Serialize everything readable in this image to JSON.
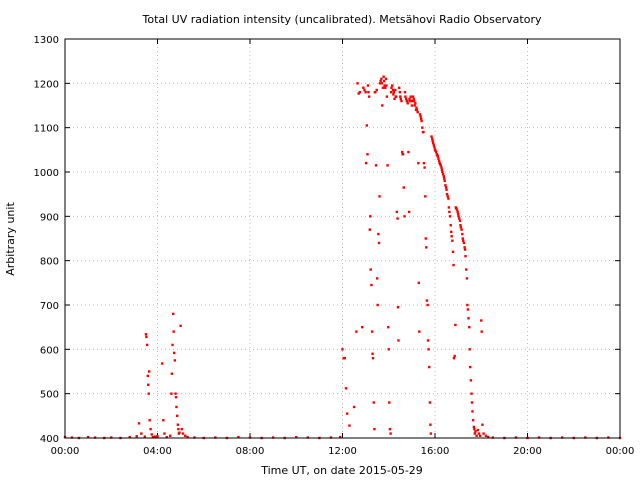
{
  "chart_data": {
    "type": "scatter",
    "title": "Total UV radiation intensity (uncalibrated). Metsähovi Radio Observatory",
    "xlabel": "Time UT, on date 2015-05-29",
    "ylabel": "Arbitrary unit",
    "xlim": [
      0,
      24
    ],
    "ylim": [
      400,
      1300
    ],
    "x_ticks": [
      {
        "value": 0,
        "label": "00:00"
      },
      {
        "value": 4,
        "label": "04:00"
      },
      {
        "value": 8,
        "label": "08:00"
      },
      {
        "value": 12,
        "label": "12:00"
      },
      {
        "value": 16,
        "label": "16:00"
      },
      {
        "value": 20,
        "label": "20:00"
      },
      {
        "value": 24,
        "label": "00:00"
      }
    ],
    "y_ticks": [
      {
        "value": 400,
        "label": "400"
      },
      {
        "value": 500,
        "label": "500"
      },
      {
        "value": 600,
        "label": "600"
      },
      {
        "value": 700,
        "label": "700"
      },
      {
        "value": 800,
        "label": "800"
      },
      {
        "value": 900,
        "label": "900"
      },
      {
        "value": 1000,
        "label": "1000"
      },
      {
        "value": 1100,
        "label": "1100"
      },
      {
        "value": 1200,
        "label": "1200"
      },
      {
        "value": 1300,
        "label": "1300"
      }
    ],
    "grid": true,
    "marker_color": "#ff0000",
    "series": [
      {
        "points": [
          [
            0.0,
            402
          ],
          [
            0.3,
            401
          ],
          [
            0.6,
            400
          ],
          [
            1.0,
            402
          ],
          [
            1.3,
            401
          ],
          [
            1.7,
            400
          ],
          [
            2.0,
            401
          ],
          [
            2.4,
            400
          ],
          [
            2.8,
            402
          ],
          [
            3.1,
            404
          ],
          [
            3.2,
            433
          ],
          [
            3.3,
            410
          ],
          [
            3.45,
            403
          ],
          [
            3.5,
            634
          ],
          [
            3.52,
            628
          ],
          [
            3.55,
            610
          ],
          [
            3.58,
            540
          ],
          [
            3.6,
            520
          ],
          [
            3.62,
            500
          ],
          [
            3.64,
            550
          ],
          [
            3.66,
            440
          ],
          [
            3.7,
            420
          ],
          [
            3.75,
            408
          ],
          [
            3.8,
            402
          ],
          [
            3.9,
            403
          ],
          [
            4.0,
            404
          ],
          [
            4.2,
            568
          ],
          [
            4.25,
            440
          ],
          [
            4.3,
            410
          ],
          [
            4.4,
            402
          ],
          [
            4.55,
            405
          ],
          [
            4.6,
            500
          ],
          [
            4.62,
            545
          ],
          [
            4.65,
            610
          ],
          [
            4.68,
            680
          ],
          [
            4.7,
            640
          ],
          [
            4.72,
            592
          ],
          [
            4.75,
            575
          ],
          [
            4.78,
            500
          ],
          [
            4.8,
            492
          ],
          [
            4.82,
            470
          ],
          [
            4.85,
            450
          ],
          [
            4.88,
            430
          ],
          [
            4.9,
            420
          ],
          [
            4.92,
            410
          ],
          [
            4.95,
            412
          ],
          [
            5.0,
            653
          ],
          [
            5.05,
            420
          ],
          [
            5.1,
            410
          ],
          [
            5.2,
            405
          ],
          [
            5.3,
            402
          ],
          [
            5.6,
            401
          ],
          [
            6.0,
            400
          ],
          [
            6.5,
            401
          ],
          [
            7.0,
            400
          ],
          [
            7.5,
            402
          ],
          [
            8.0,
            401
          ],
          [
            8.5,
            400
          ],
          [
            9.0,
            401
          ],
          [
            9.5,
            400
          ],
          [
            10.0,
            402
          ],
          [
            10.5,
            401
          ],
          [
            11.0,
            400
          ],
          [
            11.5,
            401
          ],
          [
            11.9,
            402
          ],
          [
            12.0,
            600
          ],
          [
            12.05,
            580
          ],
          [
            12.1,
            580
          ],
          [
            12.15,
            512
          ],
          [
            12.2,
            455
          ],
          [
            12.3,
            428
          ],
          [
            12.5,
            470
          ],
          [
            12.6,
            640
          ],
          [
            12.65,
            1200
          ],
          [
            12.7,
            1177
          ],
          [
            12.75,
            1180
          ],
          [
            12.85,
            650
          ],
          [
            12.9,
            1190
          ],
          [
            12.95,
            1185
          ],
          [
            13.0,
            1180
          ],
          [
            13.02,
            1020
          ],
          [
            13.05,
            1105
          ],
          [
            13.08,
            1040
          ],
          [
            13.1,
            1195
          ],
          [
            13.12,
            1180
          ],
          [
            13.15,
            1170
          ],
          [
            13.18,
            870
          ],
          [
            13.2,
            900
          ],
          [
            13.22,
            780
          ],
          [
            13.25,
            745
          ],
          [
            13.28,
            640
          ],
          [
            13.3,
            590
          ],
          [
            13.32,
            580
          ],
          [
            13.35,
            480
          ],
          [
            13.38,
            420
          ],
          [
            13.4,
            1180
          ],
          [
            13.42,
            1180
          ],
          [
            13.45,
            1015
          ],
          [
            13.48,
            1185
          ],
          [
            13.5,
            760
          ],
          [
            13.52,
            700
          ],
          [
            13.55,
            860
          ],
          [
            13.58,
            840
          ],
          [
            13.6,
            945
          ],
          [
            13.62,
            1200
          ],
          [
            13.65,
            1205
          ],
          [
            13.68,
            1210
          ],
          [
            13.7,
            1200
          ],
          [
            13.72,
            1150
          ],
          [
            13.75,
            1190
          ],
          [
            13.78,
            1215
          ],
          [
            13.8,
            1205
          ],
          [
            13.82,
            1195
          ],
          [
            13.85,
            1190
          ],
          [
            13.88,
            1210
          ],
          [
            13.9,
            1195
          ],
          [
            13.92,
            1170
          ],
          [
            13.95,
            1015
          ],
          [
            13.98,
            650
          ],
          [
            14.0,
            600
          ],
          [
            14.02,
            480
          ],
          [
            14.05,
            420
          ],
          [
            14.08,
            410
          ],
          [
            14.1,
            1180
          ],
          [
            14.12,
            1190
          ],
          [
            14.15,
            1195
          ],
          [
            14.18,
            1185
          ],
          [
            14.2,
            1175
          ],
          [
            14.22,
            1180
          ],
          [
            14.25,
            1165
          ],
          [
            14.28,
            1185
          ],
          [
            14.3,
            1170
          ],
          [
            14.32,
            1170
          ],
          [
            14.35,
            910
          ],
          [
            14.38,
            895
          ],
          [
            14.4,
            695
          ],
          [
            14.42,
            620
          ],
          [
            14.45,
            1190
          ],
          [
            14.48,
            1180
          ],
          [
            14.5,
            1170
          ],
          [
            14.52,
            1165
          ],
          [
            14.55,
            1160
          ],
          [
            14.58,
            1045
          ],
          [
            14.6,
            1040
          ],
          [
            14.62,
            1040
          ],
          [
            14.65,
            965
          ],
          [
            14.68,
            900
          ],
          [
            14.7,
            1180
          ],
          [
            14.72,
            1170
          ],
          [
            14.75,
            1165
          ],
          [
            14.78,
            1160
          ],
          [
            14.8,
            1160
          ],
          [
            14.82,
            1155
          ],
          [
            14.85,
            1045
          ],
          [
            14.88,
            910
          ],
          [
            14.9,
            1165
          ],
          [
            14.92,
            1160
          ],
          [
            14.95,
            1170
          ],
          [
            14.98,
            1160
          ],
          [
            15.0,
            1150
          ],
          [
            15.02,
            1160
          ],
          [
            15.05,
            1170
          ],
          [
            15.08,
            1165
          ],
          [
            15.1,
            1160
          ],
          [
            15.12,
            1150
          ],
          [
            15.15,
            1155
          ],
          [
            15.18,
            1140
          ],
          [
            15.2,
            1145
          ],
          [
            15.22,
            1140
          ],
          [
            15.25,
            1135
          ],
          [
            15.28,
            1020
          ],
          [
            15.3,
            750
          ],
          [
            15.32,
            640
          ],
          [
            15.35,
            1130
          ],
          [
            15.38,
            1125
          ],
          [
            15.4,
            1120
          ],
          [
            15.42,
            1115
          ],
          [
            15.45,
            1100
          ],
          [
            15.48,
            1090
          ],
          [
            15.5,
            1090
          ],
          [
            15.52,
            1020
          ],
          [
            15.55,
            1010
          ],
          [
            15.58,
            945
          ],
          [
            15.6,
            850
          ],
          [
            15.62,
            830
          ],
          [
            15.65,
            710
          ],
          [
            15.68,
            700
          ],
          [
            15.7,
            620
          ],
          [
            15.72,
            600
          ],
          [
            15.75,
            560
          ],
          [
            15.78,
            480
          ],
          [
            15.8,
            430
          ],
          [
            15.82,
            410
          ],
          [
            15.85,
            1080
          ],
          [
            15.88,
            1075
          ],
          [
            15.9,
            1070
          ],
          [
            15.92,
            1065
          ],
          [
            15.95,
            1060
          ],
          [
            15.98,
            1055
          ],
          [
            16.0,
            1050
          ],
          [
            16.02,
            1048
          ],
          [
            16.05,
            1045
          ],
          [
            16.08,
            1040
          ],
          [
            16.1,
            1038
          ],
          [
            16.12,
            1035
          ],
          [
            16.15,
            1030
          ],
          [
            16.18,
            1025
          ],
          [
            16.2,
            1020
          ],
          [
            16.22,
            1018
          ],
          [
            16.25,
            1015
          ],
          [
            16.28,
            1010
          ],
          [
            16.3,
            1005
          ],
          [
            16.32,
            1000
          ],
          [
            16.35,
            995
          ],
          [
            16.38,
            990
          ],
          [
            16.4,
            985
          ],
          [
            16.42,
            980
          ],
          [
            16.45,
            970
          ],
          [
            16.48,
            965
          ],
          [
            16.5,
            960
          ],
          [
            16.52,
            950
          ],
          [
            16.55,
            945
          ],
          [
            16.58,
            940
          ],
          [
            16.6,
            920
          ],
          [
            16.62,
            910
          ],
          [
            16.65,
            900
          ],
          [
            16.68,
            880
          ],
          [
            16.7,
            865
          ],
          [
            16.72,
            855
          ],
          [
            16.75,
            845
          ],
          [
            16.78,
            820
          ],
          [
            16.8,
            790
          ],
          [
            16.82,
            580
          ],
          [
            16.85,
            585
          ],
          [
            16.88,
            655
          ],
          [
            16.9,
            920
          ],
          [
            16.92,
            918
          ],
          [
            16.95,
            915
          ],
          [
            16.98,
            910
          ],
          [
            17.0,
            905
          ],
          [
            17.02,
            900
          ],
          [
            17.05,
            895
          ],
          [
            17.08,
            890
          ],
          [
            17.1,
            880
          ],
          [
            17.12,
            875
          ],
          [
            17.15,
            870
          ],
          [
            17.18,
            860
          ],
          [
            17.2,
            850
          ],
          [
            17.22,
            845
          ],
          [
            17.25,
            840
          ],
          [
            17.28,
            830
          ],
          [
            17.3,
            825
          ],
          [
            17.32,
            810
          ],
          [
            17.35,
            780
          ],
          [
            17.38,
            760
          ],
          [
            17.4,
            700
          ],
          [
            17.42,
            690
          ],
          [
            17.45,
            670
          ],
          [
            17.48,
            650
          ],
          [
            17.5,
            600
          ],
          [
            17.52,
            560
          ],
          [
            17.55,
            530
          ],
          [
            17.58,
            500
          ],
          [
            17.6,
            480
          ],
          [
            17.62,
            460
          ],
          [
            17.65,
            440
          ],
          [
            17.68,
            425
          ],
          [
            17.7,
            420
          ],
          [
            17.72,
            410
          ],
          [
            17.75,
            415
          ],
          [
            17.8,
            405
          ],
          [
            17.85,
            418
          ],
          [
            17.9,
            410
          ],
          [
            17.95,
            405
          ],
          [
            18.0,
            665
          ],
          [
            18.02,
            640
          ],
          [
            18.05,
            430
          ],
          [
            18.1,
            410
          ],
          [
            18.2,
            405
          ],
          [
            18.3,
            402
          ],
          [
            18.5,
            401
          ],
          [
            19.0,
            400
          ],
          [
            19.5,
            401
          ],
          [
            20.0,
            400
          ],
          [
            20.5,
            401
          ],
          [
            21.0,
            400
          ],
          [
            21.5,
            401
          ],
          [
            22.0,
            400
          ],
          [
            22.5,
            401
          ],
          [
            23.0,
            400
          ],
          [
            23.5,
            401
          ],
          [
            24.0,
            400
          ]
        ]
      }
    ]
  }
}
